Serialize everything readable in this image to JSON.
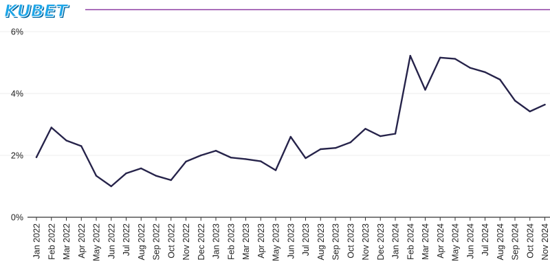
{
  "logo": {
    "text": "KUBET"
  },
  "colors": {
    "line": "#26234a",
    "header_rule": "#8e3fa3",
    "gridline": "#ececec",
    "axis": "#333333",
    "logo": "#1ea6e8"
  },
  "chart_data": {
    "type": "line",
    "title": "",
    "xlabel": "",
    "ylabel": "",
    "ylim": [
      0,
      6
    ],
    "yticks": [
      {
        "value": 0,
        "label": "0%"
      },
      {
        "value": 2,
        "label": "2%"
      },
      {
        "value": 4,
        "label": "4%"
      },
      {
        "value": 6,
        "label": "6%"
      }
    ],
    "grid": true,
    "categories": [
      "Jan 2022",
      "Feb 2022",
      "Mar 2022",
      "Apr 2022",
      "May 2022",
      "Jun 2022",
      "Jul 2022",
      "Aug 2022",
      "Sep 2022",
      "Oct 2022",
      "Nov 2022",
      "Dec 2022",
      "Jan 2023",
      "Feb 2023",
      "Mar 2023",
      "Apr 2023",
      "May 2023",
      "Jun 2023",
      "Jul 2023",
      "Aug 2023",
      "Sep 2023",
      "Oct 2023",
      "Nov 2023",
      "Dec 2023",
      "Jan 2024",
      "Feb 2024",
      "Mar 2024",
      "Apr 2024",
      "May 2024",
      "Jun 2024",
      "Jul 2024",
      "Aug 2024",
      "Sep 2024",
      "Oct 2024",
      "Nov 2024"
    ],
    "series": [
      {
        "values": [
          1.94,
          2.9,
          2.48,
          2.3,
          1.34,
          1.0,
          1.42,
          1.58,
          1.34,
          1.2,
          1.8,
          2.0,
          2.15,
          1.93,
          1.88,
          1.81,
          1.52,
          2.6,
          1.91,
          2.2,
          2.24,
          2.42,
          2.86,
          2.62,
          2.7,
          5.22,
          4.12,
          5.16,
          5.12,
          4.83,
          4.69,
          4.45,
          3.77,
          3.42,
          3.64
        ]
      }
    ]
  }
}
